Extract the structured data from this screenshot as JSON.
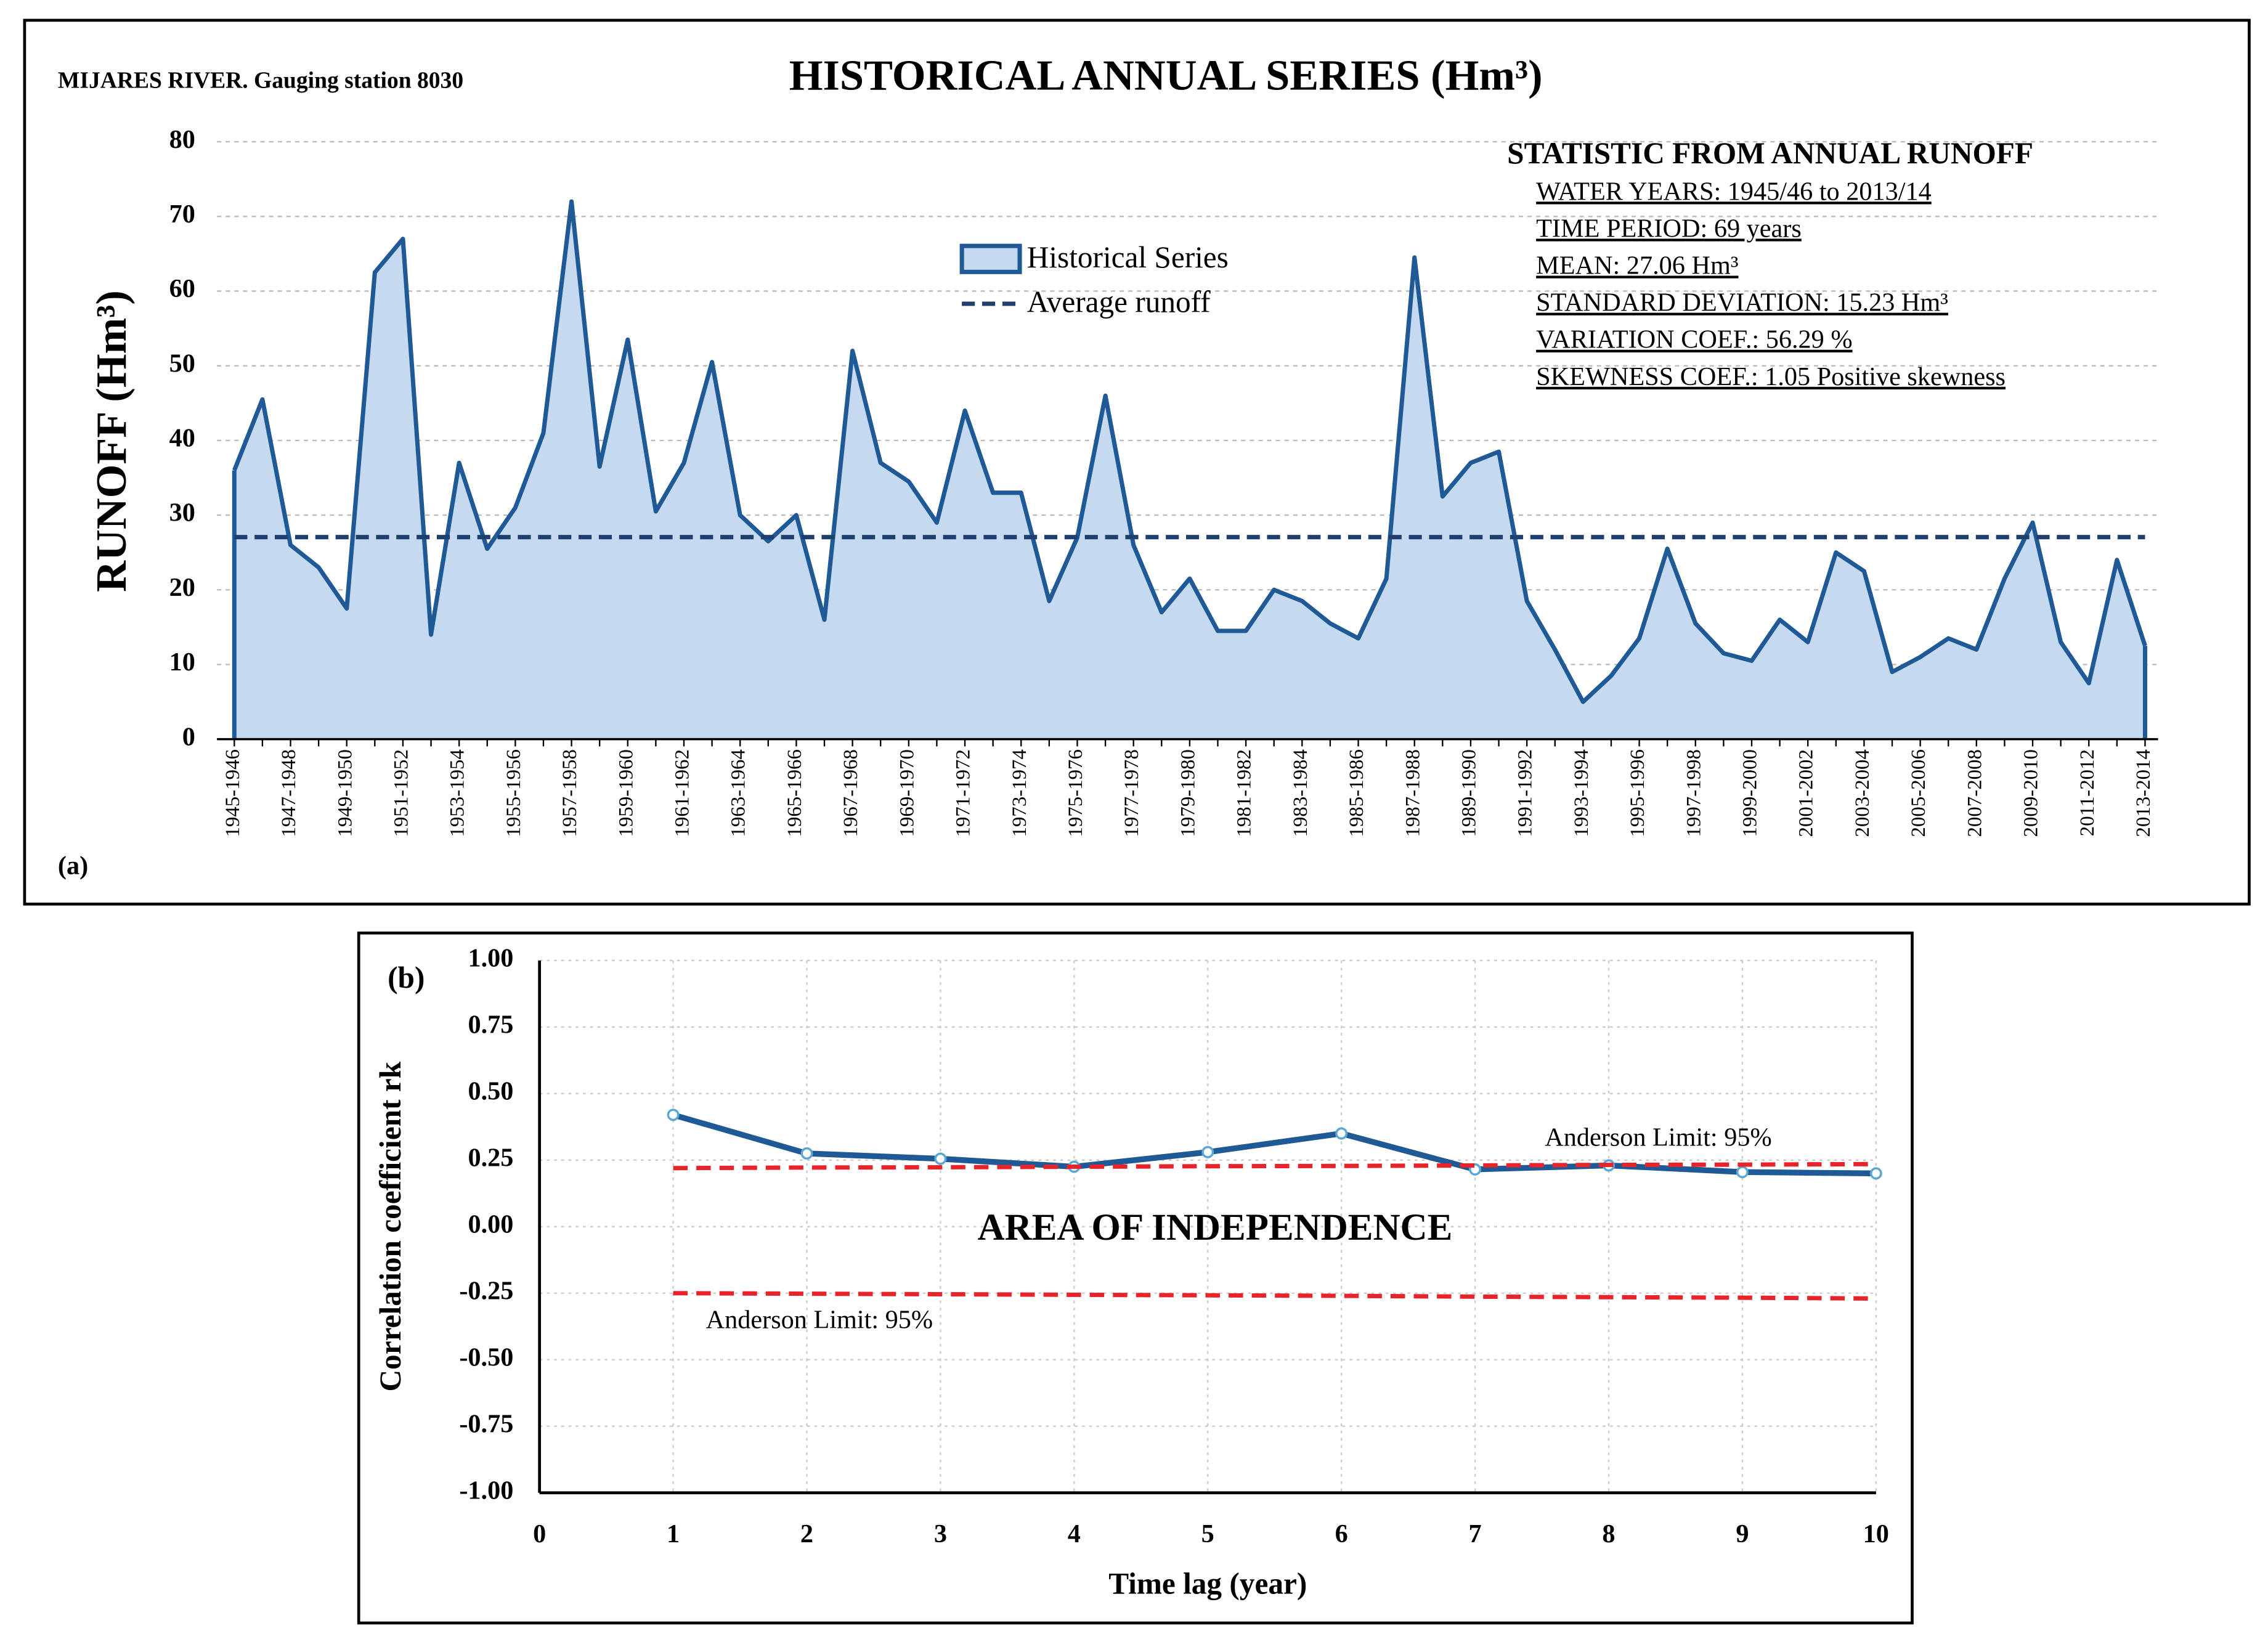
{
  "chart_data": [
    {
      "type": "area",
      "title": "HISTORICAL ANNUAL SERIES (Hm³)",
      "subtitle": "MIJARES RIVER. Gauging station 8030",
      "ylabel": "RUNOFF (Hm³)",
      "panel": "(a)",
      "categories": [
        "1945-1946",
        null,
        "1947-1948",
        null,
        "1949-1950",
        null,
        "1951-1952",
        null,
        "1953-1954",
        null,
        "1955-1956",
        null,
        "1957-1958",
        null,
        "1959-1960",
        null,
        "1961-1962",
        null,
        "1963-1964",
        null,
        "1965-1966",
        null,
        "1967-1968",
        null,
        "1969-1970",
        null,
        "1971-1972",
        null,
        "1973-1974",
        null,
        "1975-1976",
        null,
        "1977-1978",
        null,
        "1979-1980",
        null,
        "1981-1982",
        null,
        "1983-1984",
        null,
        "1985-1986",
        null,
        "1987-1988",
        null,
        "1989-1990",
        null,
        "1991-1992",
        null,
        "1993-1994",
        null,
        "1995-1996",
        null,
        "1997-1998",
        null,
        "1999-2000",
        null,
        "2001-2002",
        null,
        "2003-2004",
        null,
        "2005-2006",
        null,
        "2007-2008",
        null,
        "2009-2010",
        null,
        "2011-2012",
        null,
        "2013-2014"
      ],
      "series": [
        {
          "name": "Historical Series",
          "color": "#1f5a96",
          "fill": "#c5daf0",
          "values": [
            36,
            45.5,
            26,
            23,
            17.5,
            62.5,
            67,
            14,
            37,
            25.5,
            31,
            41,
            72,
            36.5,
            53.5,
            30.5,
            37,
            50.5,
            30,
            26.5,
            30,
            16,
            52,
            37,
            34.5,
            29,
            44,
            33,
            33,
            18.5,
            27,
            46,
            26,
            17,
            21.5,
            14.5,
            14.5,
            20,
            18.5,
            15.5,
            13.5,
            21.5,
            64.5,
            32.5,
            37,
            38.5,
            18.5,
            12,
            5,
            8.5,
            13.5,
            25.5,
            15.5,
            11.5,
            10.5,
            16,
            13,
            25,
            22.5,
            9,
            11,
            13.5,
            12,
            21.5,
            29,
            13,
            7.5,
            24,
            12.5
          ]
        }
      ],
      "reference_lines": [
        {
          "name": "Average runoff",
          "value": 27.06,
          "color": "#1f3f6e"
        }
      ],
      "statistics": {
        "title": "STATISTIC FROM ANNUAL RUNOFF",
        "lines": [
          "WATER YEARS: 1945/46 to 2013/14",
          "TIME PERIOD: 69 years",
          "MEAN: 27.06 Hm³",
          "STANDARD DEVIATION: 15.23 Hm³",
          "VARIATION COEF.: 56.29 %",
          "SKEWNESS COEF.: 1.05 Positive skewness"
        ]
      },
      "ylim": [
        0,
        80
      ],
      "yticks": [
        0,
        10,
        20,
        30,
        40,
        50,
        60,
        70,
        80
      ],
      "grid": true
    },
    {
      "type": "line",
      "panel": "(b)",
      "xlabel": "Time lag  (year)",
      "ylabel": "Correlation coefficient rk",
      "annotation": "AREA OF INDEPENDENCE",
      "x": [
        1,
        2,
        3,
        4,
        5,
        6,
        7,
        8,
        9,
        10
      ],
      "series": [
        {
          "color": "#1f5a96",
          "values": [
            0.42,
            0.275,
            0.255,
            0.225,
            0.28,
            0.35,
            0.215,
            0.23,
            0.205,
            0.2
          ]
        },
        {
          "name": "Anderson Limit: 95%",
          "color": "#e8232a",
          "values": [
            0.22,
            0.222,
            0.223,
            0.225,
            0.227,
            0.228,
            0.23,
            0.232,
            0.233,
            0.235
          ]
        },
        {
          "name": "Anderson Limit: 95%",
          "color": "#e8232a",
          "values": [
            -0.25,
            -0.252,
            -0.254,
            -0.256,
            -0.258,
            -0.26,
            -0.263,
            -0.265,
            -0.267,
            -0.27
          ]
        }
      ],
      "xlim": [
        0,
        10
      ],
      "xticks": [
        0,
        1,
        2,
        3,
        4,
        5,
        6,
        7,
        8,
        9,
        10
      ],
      "ylim": [
        -1,
        1
      ],
      "yticks": [
        {
          "value": -1,
          "label": "-1.00"
        },
        {
          "value": -0.75,
          "label": "-0.75"
        },
        {
          "value": -0.5,
          "label": "-0.50"
        },
        {
          "value": -0.25,
          "label": "-0.25"
        },
        {
          "value": 0,
          "label": "0.00"
        },
        {
          "value": 0.25,
          "label": "0.25"
        },
        {
          "value": 0.5,
          "label": "0.50"
        },
        {
          "value": 0.75,
          "label": "0.75"
        },
        {
          "value": 1,
          "label": "1.00"
        }
      ],
      "grid": true
    }
  ]
}
